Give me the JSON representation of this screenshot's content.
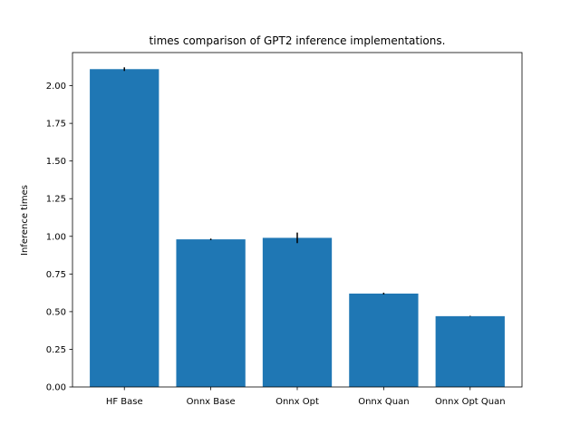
{
  "chart_data": {
    "type": "bar",
    "title": "times comparison of GPT2 inference implementations.",
    "xlabel": "",
    "ylabel": "Inference times",
    "categories": [
      "HF Base",
      "Onnx Base",
      "Onnx Opt",
      "Onnx Quan",
      "Onnx Opt Quan"
    ],
    "values": [
      2.11,
      0.98,
      0.99,
      0.62,
      0.47
    ],
    "errors": [
      0.012,
      0.005,
      0.035,
      0.006,
      0.002
    ],
    "ylim": [
      0,
      2.22
    ],
    "yticks": [
      "0.00",
      "0.25",
      "0.50",
      "0.75",
      "1.00",
      "1.25",
      "1.50",
      "1.75",
      "2.00"
    ],
    "ytick_values": [
      0,
      0.25,
      0.5,
      0.75,
      1.0,
      1.25,
      1.5,
      1.75,
      2.0
    ],
    "grid": false,
    "bar_color": "#1f77b4",
    "error_color": "#000000"
  }
}
